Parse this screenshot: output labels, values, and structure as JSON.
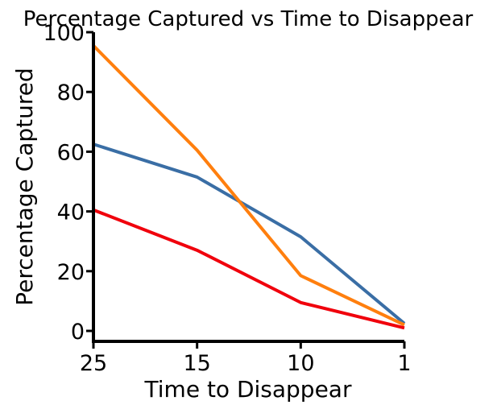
{
  "chart_data": {
    "type": "line",
    "title": "Percentage Captured vs Time to Disappear",
    "xlabel": "Time to Disappear",
    "ylabel": "Percentage Captured",
    "categories": [
      "25",
      "15",
      "10",
      "1"
    ],
    "yticks": [
      "0",
      "20",
      "40",
      "60",
      "80",
      "100"
    ],
    "ylim": [
      -3.5,
      100
    ],
    "grid": false,
    "series": [
      {
        "color": "#3a6ea5",
        "values": [
          62.5,
          51.5,
          31.5,
          2.5
        ]
      },
      {
        "color": "#ff7f0e",
        "values": [
          95.5,
          60.5,
          18.5,
          2.0
        ]
      },
      {
        "color": "#f0000c",
        "values": [
          40.5,
          27.0,
          9.5,
          1.0
        ]
      }
    ]
  }
}
